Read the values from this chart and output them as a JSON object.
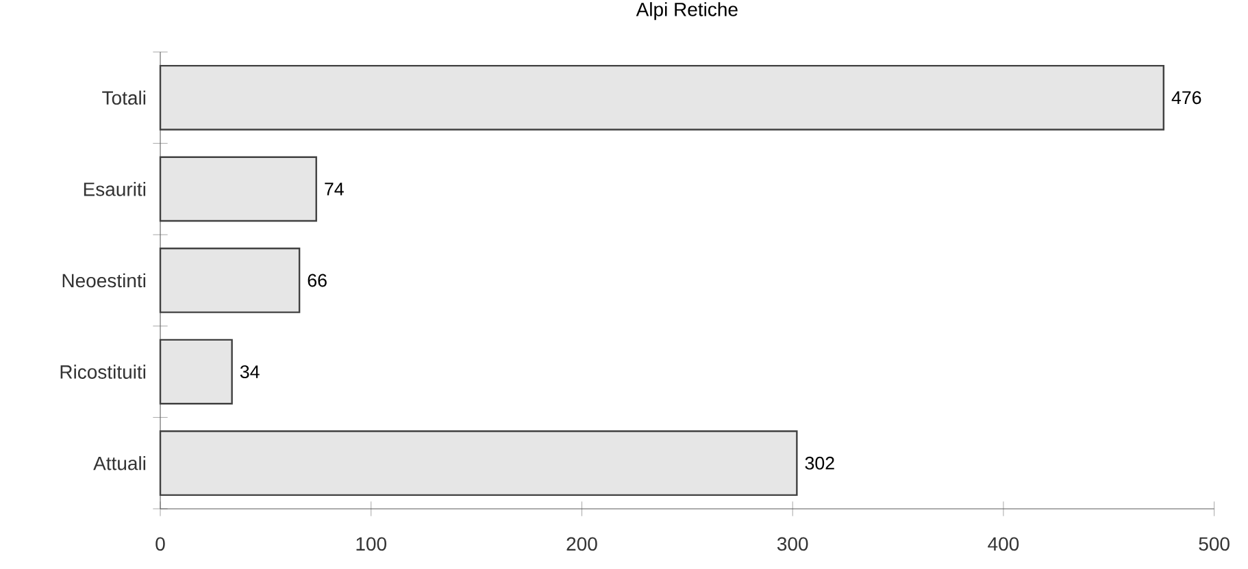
{
  "chart_data": {
    "type": "bar",
    "orientation": "horizontal",
    "title": "Alpi Retiche",
    "categories": [
      "Totali",
      "Esauriti",
      "Neoestinti",
      "Ricostituiti",
      "Attuali"
    ],
    "values": [
      476,
      74,
      66,
      34,
      302
    ],
    "color": "#e6e6e6",
    "xlim": [
      0,
      500
    ],
    "xticks": [
      0,
      100,
      200,
      300,
      400,
      500
    ],
    "data_labels": true
  }
}
